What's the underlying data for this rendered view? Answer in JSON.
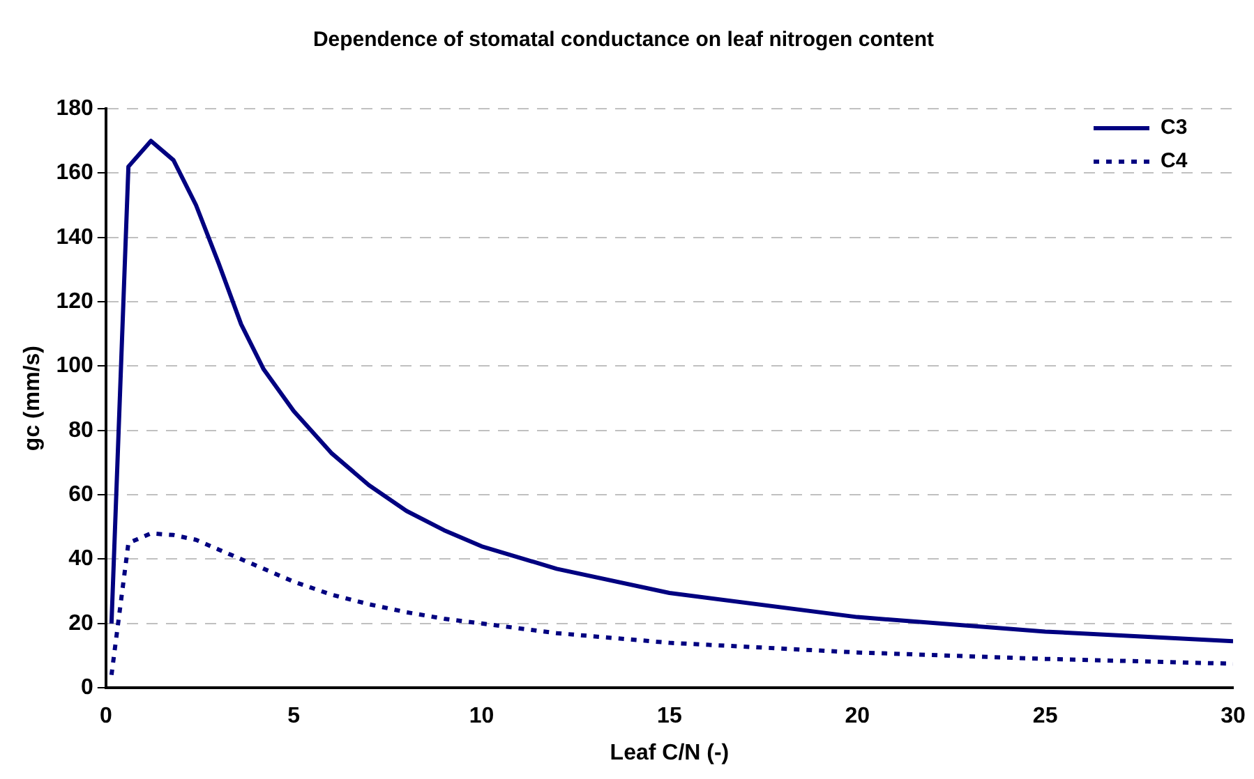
{
  "chart_data": {
    "type": "line",
    "title": "Dependence of stomatal conductance on leaf nitrogen content",
    "xlabel": "Leaf C/N (-)",
    "ylabel": "gc (mm/s)",
    "x": [
      0.15,
      0.6,
      1.2,
      1.8,
      2.4,
      3,
      3.6,
      4.2,
      5,
      6,
      7,
      8,
      9,
      10,
      12,
      15,
      20,
      25,
      30
    ],
    "series": [
      {
        "name": "C3",
        "color": "#000080",
        "line_style": "solid",
        "values": [
          20,
          162,
          170,
          164,
          150,
          132,
          113,
          99,
          86,
          73,
          63,
          55,
          49,
          44,
          37,
          29.5,
          22,
          17.5,
          14.5
        ]
      },
      {
        "name": "C4",
        "color": "#000080",
        "line_style": "dotted",
        "values": [
          4,
          45,
          48,
          47.5,
          46,
          43,
          40,
          37,
          33,
          29,
          26,
          23.5,
          21.5,
          20,
          17,
          14,
          11,
          9,
          7.5
        ]
      }
    ],
    "xlim": [
      0,
      30
    ],
    "xticks": [
      0,
      5,
      10,
      15,
      20,
      25,
      30
    ],
    "ylim": [
      0,
      180
    ],
    "yticks": [
      0,
      20,
      40,
      60,
      80,
      100,
      120,
      140,
      160,
      180
    ],
    "grid": "y",
    "legend": "top right",
    "marker": "none"
  }
}
